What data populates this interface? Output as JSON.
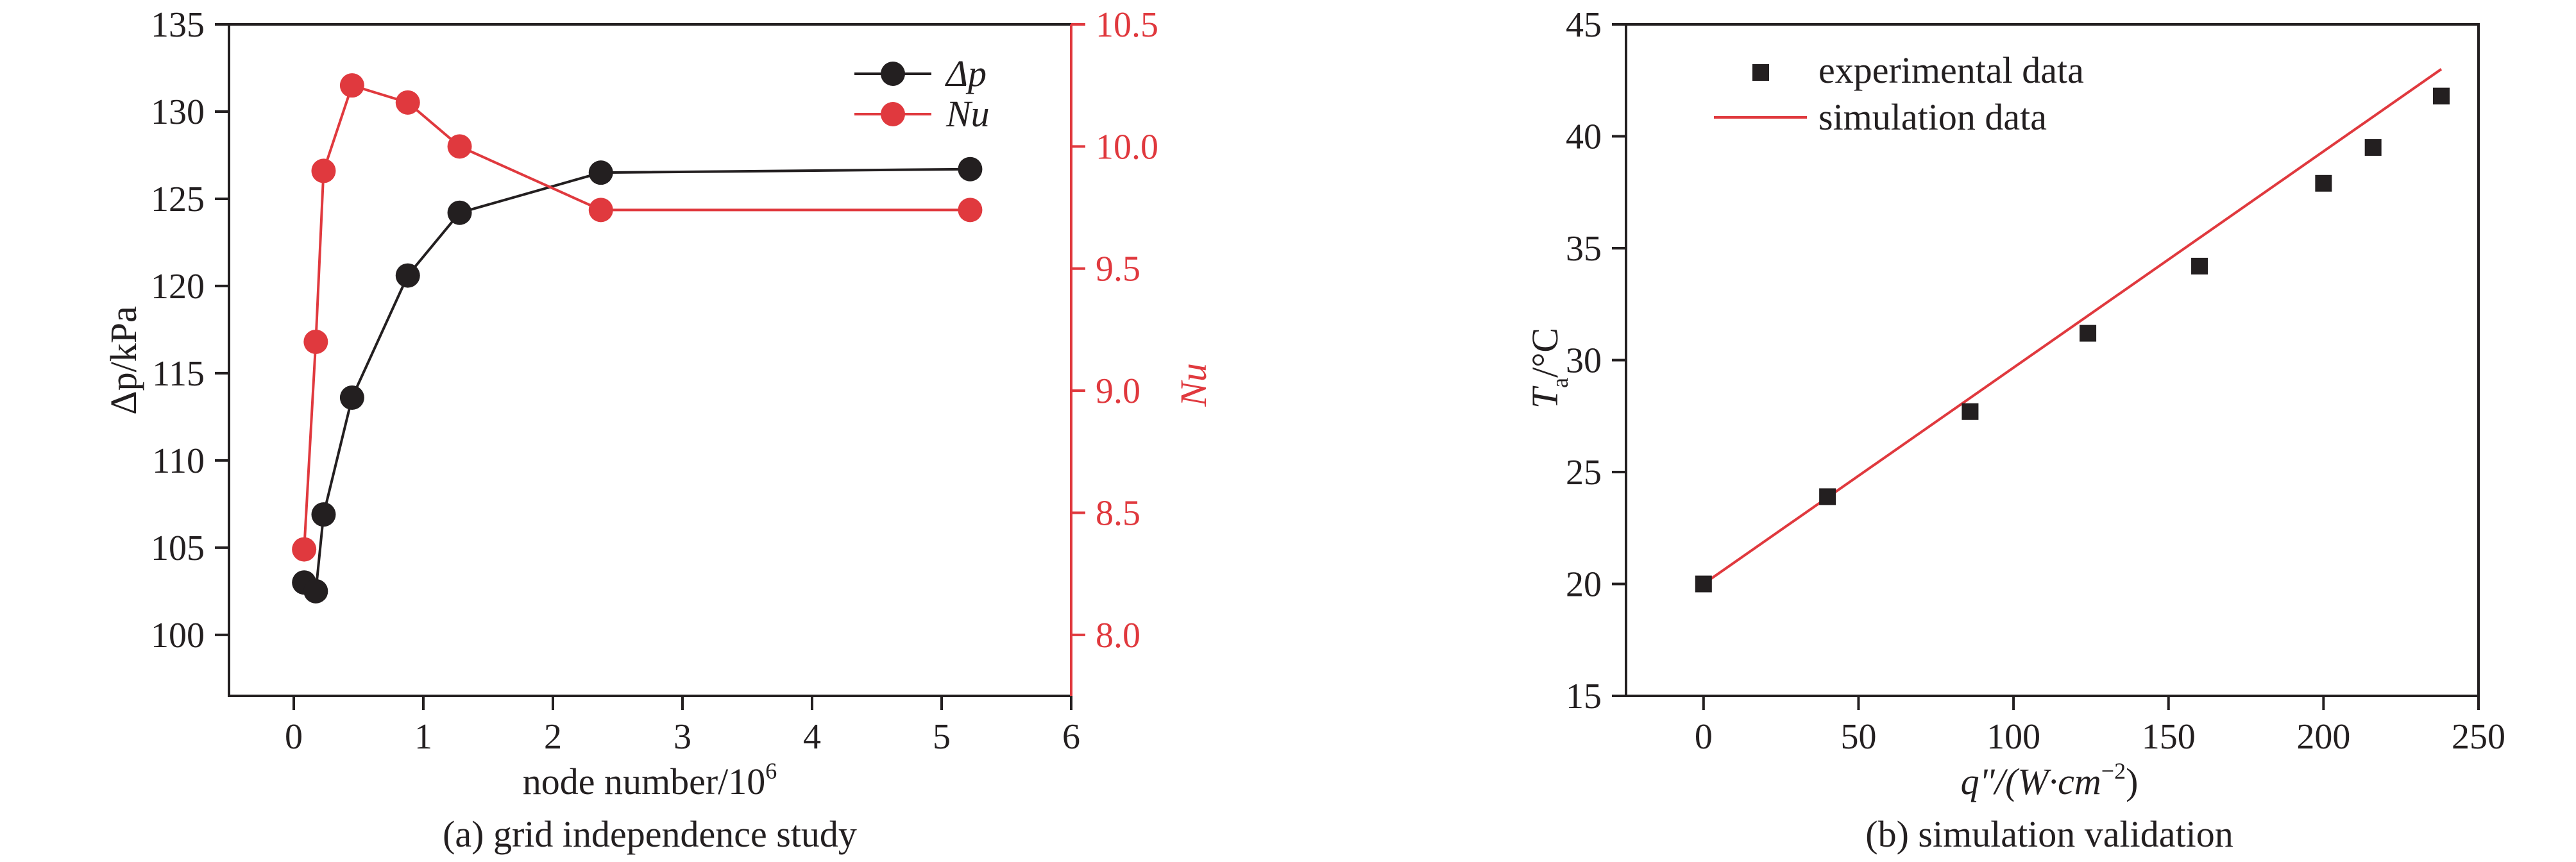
{
  "chart_data": [
    {
      "type": "line",
      "caption": "(a) grid independence study",
      "xlabel": "node number/10",
      "xlabel_sup": "6",
      "ylabel_left": "Δp/kPa",
      "ylabel_right": "Nu",
      "xlim": [
        -0.5,
        6
      ],
      "ylim_left": [
        96.5,
        135
      ],
      "ylim_right": [
        7.75,
        10.5
      ],
      "x_ticks": [
        "0",
        "1",
        "2",
        "3",
        "4",
        "5",
        "6"
      ],
      "y_ticks_left": [
        "100",
        "105",
        "110",
        "115",
        "120",
        "125",
        "130",
        "135"
      ],
      "y_ticks_right": [
        "8.0",
        "8.5",
        "9.0",
        "9.5",
        "10.0",
        "10.5"
      ],
      "grid": false,
      "legend_position": "top-right",
      "series": [
        {
          "name": "Δp",
          "axis": "left",
          "color": "#231f20",
          "points": [
            [
              0.08,
              103.0
            ],
            [
              0.17,
              102.5
            ],
            [
              0.23,
              106.9
            ],
            [
              0.45,
              113.6
            ],
            [
              0.88,
              120.6
            ],
            [
              1.28,
              124.2
            ],
            [
              2.37,
              126.5
            ],
            [
              5.22,
              126.7
            ]
          ]
        },
        {
          "name": "Nu",
          "axis": "right",
          "color": "#e0393e",
          "points": [
            [
              0.08,
              8.35
            ],
            [
              0.17,
              9.2
            ],
            [
              0.23,
              9.9
            ],
            [
              0.45,
              10.25
            ],
            [
              0.88,
              10.18
            ],
            [
              1.28,
              10.0
            ],
            [
              2.37,
              9.74
            ],
            [
              5.22,
              9.74
            ]
          ]
        }
      ]
    },
    {
      "type": "scatter",
      "caption": "(b) simulation validation",
      "xlabel": "q\"/(W·cm",
      "xlabel_sup": "−2",
      "xlabel_end": ")",
      "ylabel": "T",
      "ylabel_sub": "a",
      "ylabel_end": "/°C",
      "xlim": [
        -25,
        250
      ],
      "ylim": [
        15,
        45
      ],
      "x_ticks": [
        "0",
        "50",
        "100",
        "150",
        "200",
        "250"
      ],
      "y_ticks": [
        "15",
        "20",
        "25",
        "30",
        "35",
        "40",
        "45"
      ],
      "grid": false,
      "legend_position": "top-left",
      "series": [
        {
          "name": "experimental data",
          "kind": "scatter",
          "color": "#231f20",
          "points": [
            [
              0,
              20.0
            ],
            [
              40,
              23.9
            ],
            [
              86,
              27.7
            ],
            [
              124,
              31.2
            ],
            [
              160,
              34.2
            ],
            [
              200,
              37.9
            ],
            [
              216,
              39.5
            ],
            [
              238,
              41.8
            ]
          ]
        },
        {
          "name": "simulation data",
          "kind": "line",
          "color": "#e0393e",
          "points": [
            [
              0,
              20.0
            ],
            [
              238,
              43.0
            ]
          ]
        }
      ]
    }
  ]
}
